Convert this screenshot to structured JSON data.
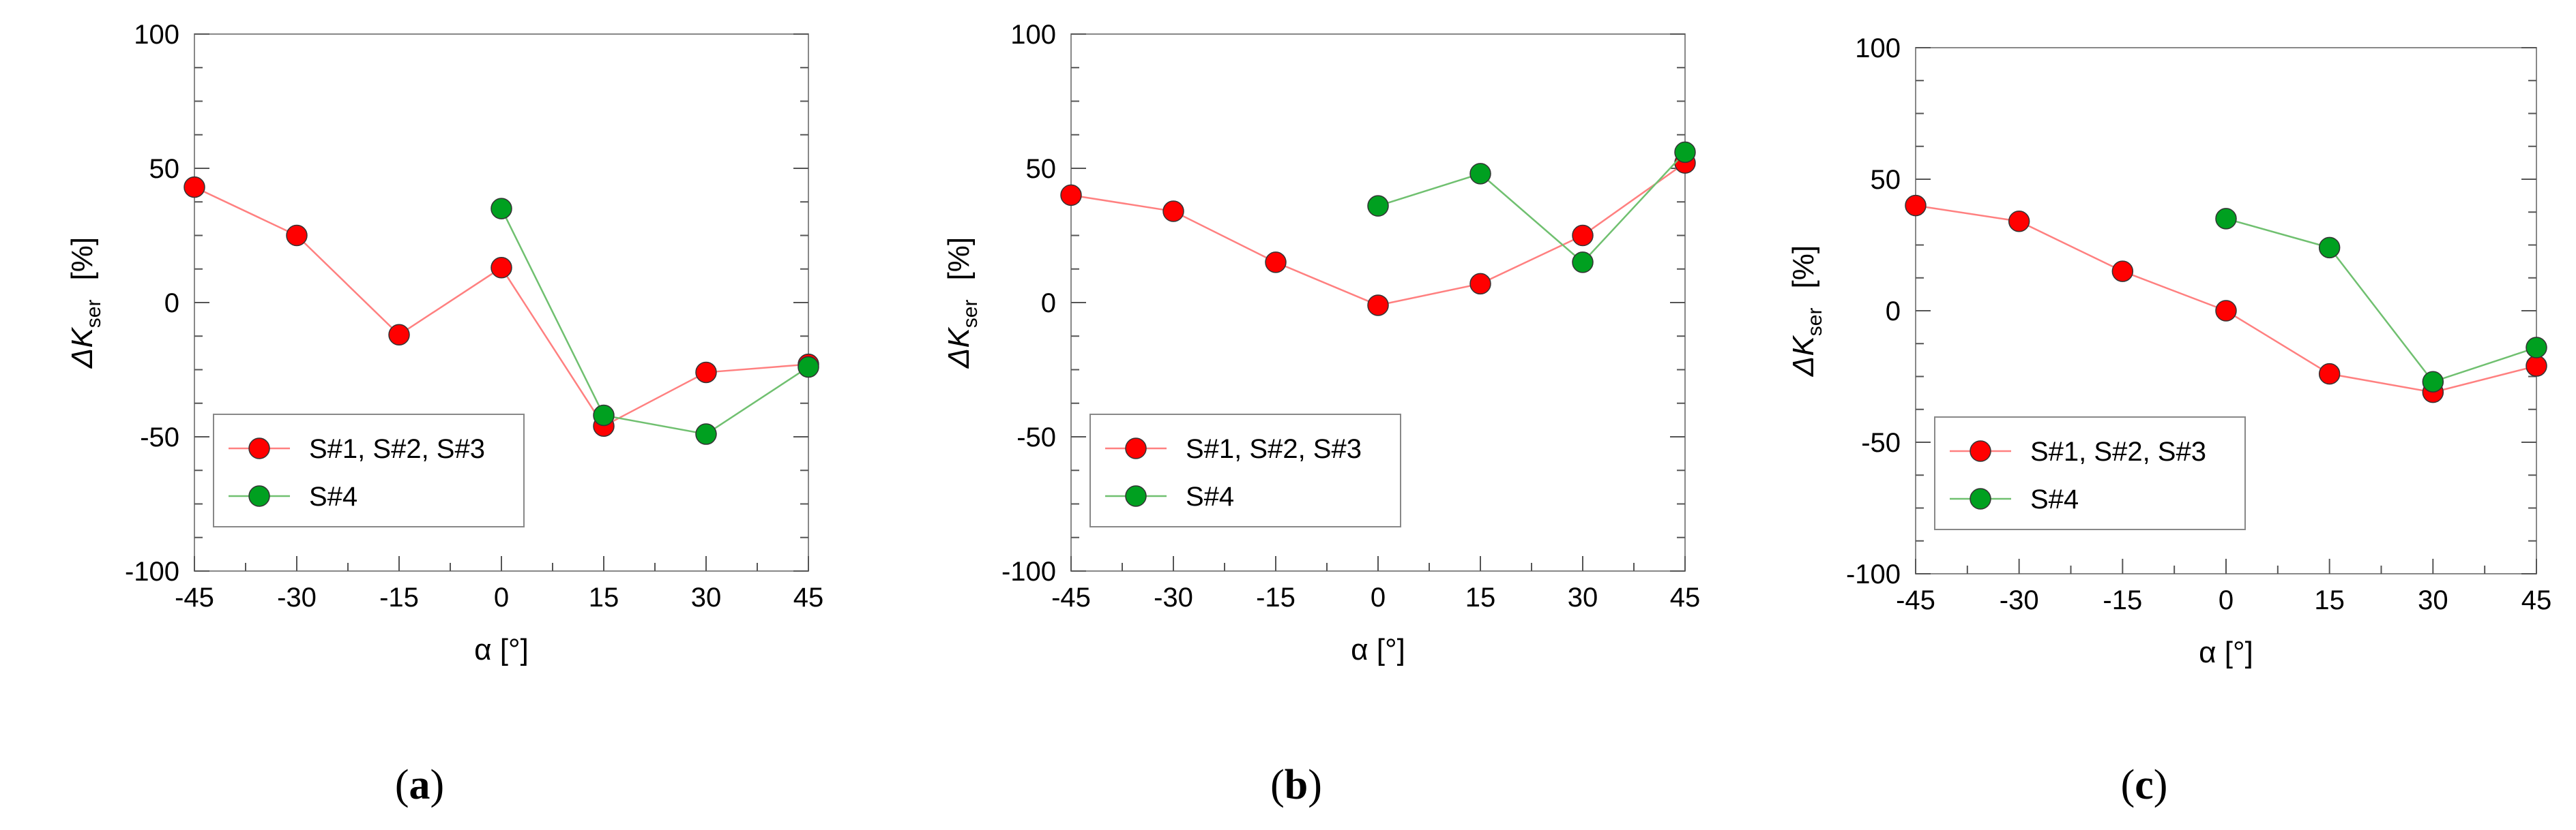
{
  "chart_data": [
    {
      "type": "line",
      "panel_label": "a",
      "xlabel": "α  [°]",
      "ylabel_main": "ΔK",
      "ylabel_sub": "ser",
      "ylabel_unit": "[%]",
      "xlim": [
        -45,
        45
      ],
      "ylim": [
        -100,
        100
      ],
      "xticks": [
        -45,
        -30,
        -15,
        0,
        15,
        30,
        45
      ],
      "yticks": [
        -100,
        -50,
        0,
        50,
        100
      ],
      "grid": false,
      "legend_position": "bottom-left",
      "series": [
        {
          "name": "S#1, S#2, S#3",
          "color": "#ff0000",
          "line_color": "#ff8080",
          "x": [
            -45,
            -30,
            -15,
            0,
            15,
            30,
            45
          ],
          "y": [
            43,
            25,
            -12,
            13,
            -46,
            -26,
            -23
          ]
        },
        {
          "name": "S#4",
          "color": "#00a020",
          "line_color": "#70c070",
          "x": [
            0,
            15,
            30,
            45
          ],
          "y": [
            35,
            -42,
            -49,
            -24
          ]
        }
      ]
    },
    {
      "type": "line",
      "panel_label": "b",
      "xlabel": "α  [°]",
      "ylabel_main": "ΔK",
      "ylabel_sub": "ser",
      "ylabel_unit": "[%]",
      "xlim": [
        -45,
        45
      ],
      "ylim": [
        -100,
        100
      ],
      "xticks": [
        -45,
        -30,
        -15,
        0,
        15,
        30,
        45
      ],
      "yticks": [
        -100,
        -50,
        0,
        50,
        100
      ],
      "grid": false,
      "legend_position": "bottom-left",
      "series": [
        {
          "name": "S#1, S#2, S#3",
          "color": "#ff0000",
          "line_color": "#ff8080",
          "x": [
            -45,
            -30,
            -15,
            0,
            15,
            30,
            45
          ],
          "y": [
            40,
            34,
            15,
            -1,
            7,
            25,
            52
          ]
        },
        {
          "name": "S#4",
          "color": "#00a020",
          "line_color": "#70c070",
          "x": [
            0,
            15,
            30,
            45
          ],
          "y": [
            36,
            48,
            15,
            56
          ]
        }
      ]
    },
    {
      "type": "line",
      "panel_label": "c",
      "xlabel": "α  [°]",
      "ylabel_main": "ΔK",
      "ylabel_sub": "ser",
      "ylabel_unit": "[%]",
      "xlim": [
        -45,
        45
      ],
      "ylim": [
        -100,
        100
      ],
      "xticks": [
        -45,
        -30,
        -15,
        0,
        15,
        30,
        45
      ],
      "yticks": [
        -100,
        -50,
        0,
        50,
        100
      ],
      "grid": false,
      "legend_position": "bottom-left",
      "series": [
        {
          "name": "S#1, S#2, S#3",
          "color": "#ff0000",
          "line_color": "#ff8080",
          "x": [
            -45,
            -30,
            -15,
            0,
            15,
            30,
            45
          ],
          "y": [
            40,
            34,
            15,
            0,
            -24,
            -31,
            -21
          ]
        },
        {
          "name": "S#4",
          "color": "#00a020",
          "line_color": "#70c070",
          "x": [
            0,
            15,
            30,
            45
          ],
          "y": [
            35,
            24,
            -27,
            -14
          ]
        }
      ]
    }
  ]
}
